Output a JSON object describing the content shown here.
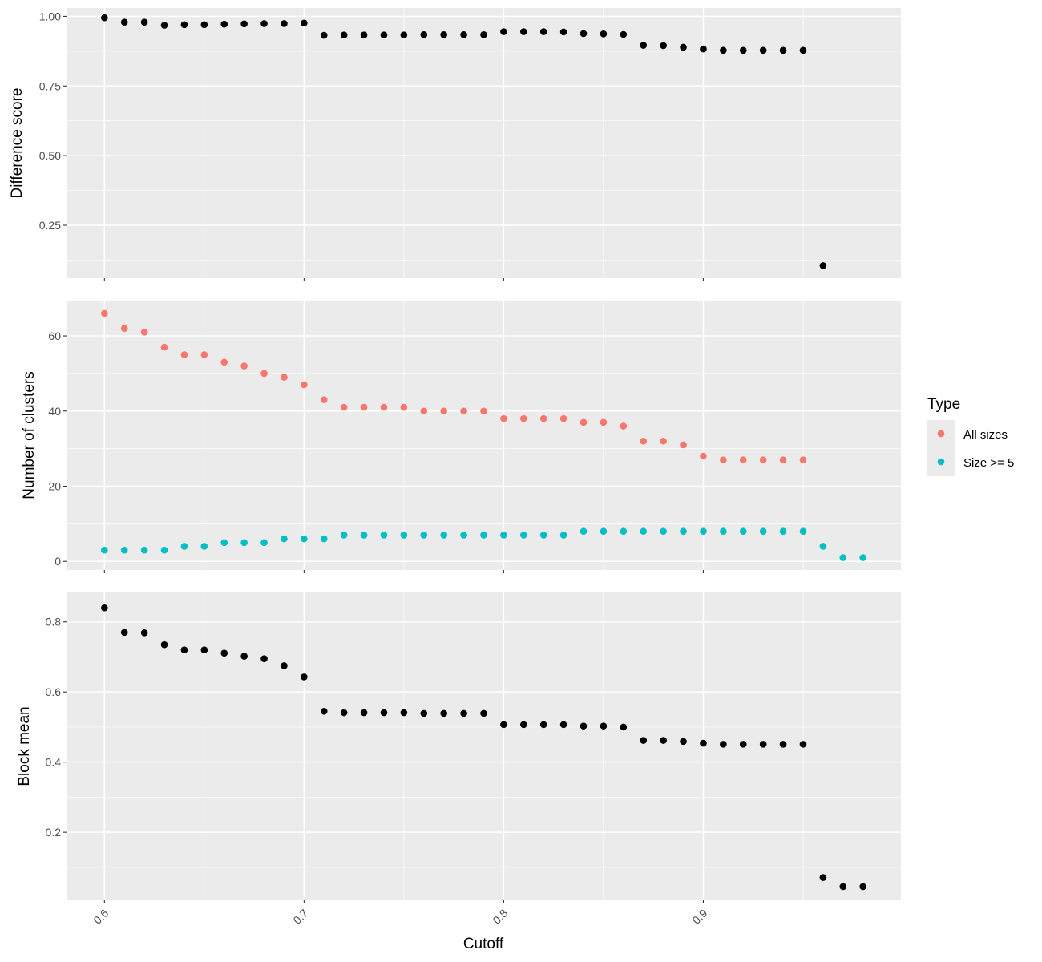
{
  "chart_data": {
    "type": "scatter",
    "xlabel": "Cutoff",
    "x_ticks": [
      "0.6",
      "0.7",
      "0.8",
      "0.9"
    ],
    "xlim": [
      0.581,
      0.999
    ],
    "legend": {
      "title": "Type",
      "position": "right",
      "entries": [
        {
          "label": "All sizes",
          "color": "#F8766D"
        },
        {
          "label": "Size >= 5",
          "color": "#00BFC4"
        }
      ]
    },
    "panels": [
      {
        "id": "difference-score",
        "ylabel": "Difference score",
        "ylim": [
          0.06,
          1.03
        ],
        "y_ticks": [
          "0.25",
          "0.50",
          "0.75",
          "1.00"
        ],
        "series": [
          {
            "color": "#000000",
            "x": [
              0.6,
              0.61,
              0.62,
              0.63,
              0.64,
              0.65,
              0.66,
              0.67,
              0.68,
              0.69,
              0.7,
              0.71,
              0.72,
              0.73,
              0.74,
              0.75,
              0.76,
              0.77,
              0.78,
              0.79,
              0.8,
              0.81,
              0.82,
              0.83,
              0.84,
              0.85,
              0.86,
              0.87,
              0.88,
              0.89,
              0.9,
              0.91,
              0.92,
              0.93,
              0.94,
              0.95,
              0.96
            ],
            "y": [
              0.995,
              0.979,
              0.979,
              0.968,
              0.97,
              0.97,
              0.972,
              0.973,
              0.974,
              0.974,
              0.976,
              0.932,
              0.933,
              0.933,
              0.933,
              0.933,
              0.934,
              0.934,
              0.934,
              0.934,
              0.945,
              0.945,
              0.945,
              0.944,
              0.938,
              0.937,
              0.935,
              0.896,
              0.895,
              0.889,
              0.883,
              0.878,
              0.878,
              0.878,
              0.878,
              0.878,
              0.105
            ]
          }
        ]
      },
      {
        "id": "number-of-clusters",
        "ylabel": "Number of clusters",
        "ylim": [
          -2.3,
          69.4
        ],
        "y_ticks": [
          "0",
          "20",
          "40",
          "60"
        ],
        "series": [
          {
            "name": "All sizes",
            "color": "#F8766D",
            "x": [
              0.6,
              0.61,
              0.62,
              0.63,
              0.64,
              0.65,
              0.66,
              0.67,
              0.68,
              0.69,
              0.7,
              0.71,
              0.72,
              0.73,
              0.74,
              0.75,
              0.76,
              0.77,
              0.78,
              0.79,
              0.8,
              0.81,
              0.82,
              0.83,
              0.84,
              0.85,
              0.86,
              0.87,
              0.88,
              0.89,
              0.9,
              0.91,
              0.92,
              0.93,
              0.94,
              0.95
            ],
            "y": [
              66,
              62,
              61,
              57,
              55,
              55,
              53,
              52,
              50,
              49,
              47,
              43,
              41,
              41,
              41,
              41,
              40,
              40,
              40,
              40,
              38,
              38,
              38,
              38,
              37,
              37,
              36,
              32,
              32,
              31,
              28,
              27,
              27,
              27,
              27,
              27
            ]
          },
          {
            "name": "Size >= 5",
            "color": "#00BFC4",
            "x": [
              0.6,
              0.61,
              0.62,
              0.63,
              0.64,
              0.65,
              0.66,
              0.67,
              0.68,
              0.69,
              0.7,
              0.71,
              0.72,
              0.73,
              0.74,
              0.75,
              0.76,
              0.77,
              0.78,
              0.79,
              0.8,
              0.81,
              0.82,
              0.83,
              0.84,
              0.85,
              0.86,
              0.87,
              0.88,
              0.89,
              0.9,
              0.91,
              0.92,
              0.93,
              0.94,
              0.95,
              0.96,
              0.97,
              0.98
            ],
            "y": [
              3,
              3,
              3,
              3,
              4,
              4,
              5,
              5,
              5,
              6,
              6,
              6,
              7,
              7,
              7,
              7,
              7,
              7,
              7,
              7,
              7,
              7,
              7,
              7,
              8,
              8,
              8,
              8,
              8,
              8,
              8,
              8,
              8,
              8,
              8,
              8,
              4,
              1,
              1
            ]
          }
        ]
      },
      {
        "id": "block-mean",
        "ylabel": "Block mean",
        "ylim": [
          0.006,
          0.884
        ],
        "y_ticks": [
          "0.2",
          "0.4",
          "0.6",
          "0.8"
        ],
        "series": [
          {
            "color": "#000000",
            "x": [
              0.6,
              0.61,
              0.62,
              0.63,
              0.64,
              0.65,
              0.66,
              0.67,
              0.68,
              0.69,
              0.7,
              0.71,
              0.72,
              0.73,
              0.74,
              0.75,
              0.76,
              0.77,
              0.78,
              0.79,
              0.8,
              0.81,
              0.82,
              0.83,
              0.84,
              0.85,
              0.86,
              0.87,
              0.88,
              0.89,
              0.9,
              0.91,
              0.92,
              0.93,
              0.94,
              0.95,
              0.96,
              0.97,
              0.98
            ],
            "y": [
              0.84,
              0.77,
              0.769,
              0.735,
              0.72,
              0.72,
              0.711,
              0.702,
              0.695,
              0.675,
              0.643,
              0.545,
              0.541,
              0.541,
              0.541,
              0.541,
              0.539,
              0.539,
              0.539,
              0.539,
              0.507,
              0.507,
              0.507,
              0.507,
              0.503,
              0.503,
              0.5,
              0.462,
              0.462,
              0.459,
              0.454,
              0.451,
              0.451,
              0.451,
              0.451,
              0.451,
              0.071,
              0.045,
              0.045
            ]
          }
        ]
      }
    ]
  }
}
